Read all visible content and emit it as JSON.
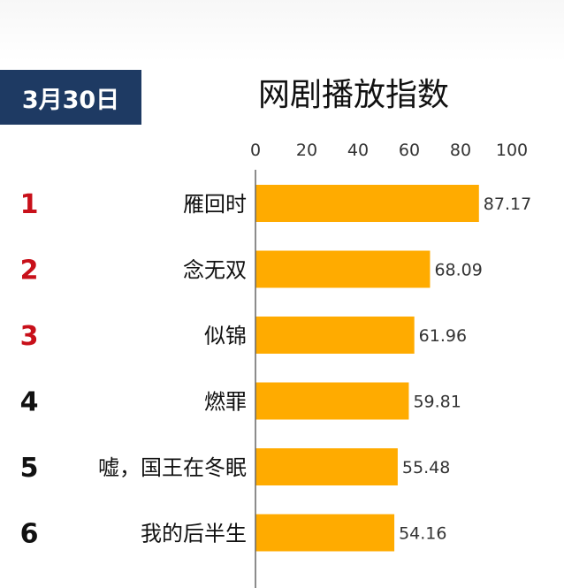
{
  "date_badge": "3月30日",
  "chart_data": {
    "type": "bar",
    "orientation": "horizontal",
    "title": "网剧播放指数",
    "xlim": [
      0,
      100
    ],
    "ticks": [
      "0",
      "20",
      "40",
      "60",
      "80",
      "100"
    ],
    "categories": [
      "雁回时",
      "念无双",
      "似锦",
      "燃罪",
      "嘘，国王在冬眠",
      "我的后半生"
    ],
    "values": [
      87.17,
      68.09,
      61.96,
      59.81,
      55.48,
      54.16
    ],
    "ranks": [
      "1",
      "2",
      "3",
      "4",
      "5",
      "6"
    ],
    "colors": {
      "bar": "#ffab00",
      "rank_top": "#c8101a",
      "rank_other": "#111111",
      "axis": "#666666"
    }
  }
}
